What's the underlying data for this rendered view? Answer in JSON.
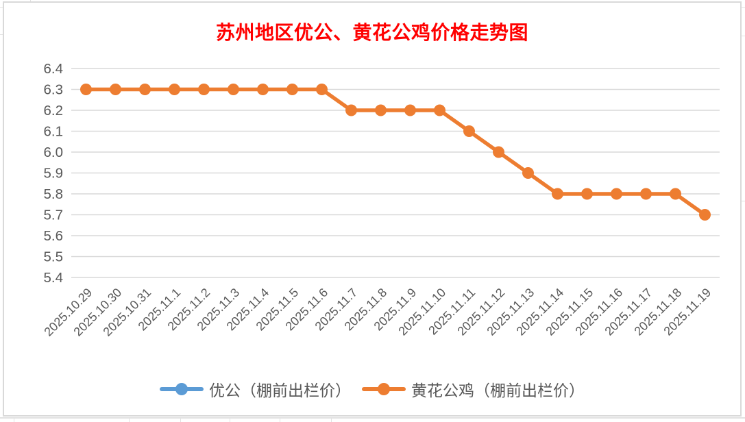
{
  "title": {
    "text": "苏州地区优公、黄花公鸡价格走势图",
    "color": "#FF0000"
  },
  "chart_data": {
    "type": "line",
    "title": "苏州地区优公、黄花公鸡价格走势图",
    "categories": [
      "2025.10.29",
      "2025.10.30",
      "2025.10.31",
      "2025.11.1",
      "2025.11.2",
      "2025.11.3",
      "2025.11.4",
      "2025.11.5",
      "2025.11.6",
      "2025.11.7",
      "2025.11.8",
      "2025.11.9",
      "2025.11.10",
      "2025.11.11",
      "2025.11.12",
      "2025.11.13",
      "2025.11.14",
      "2025.11.15",
      "2025.11.16",
      "2025.11.17",
      "2025.11.18",
      "2025.11.19"
    ],
    "series": [
      {
        "name": "优公（棚前出栏价）",
        "color": "#5B9BD5",
        "visible_in_plot": false
      },
      {
        "name": "黄花公鸡（棚前出栏价）",
        "color": "#ED7D31",
        "visible_in_plot": true,
        "values": [
          6.3,
          6.3,
          6.3,
          6.3,
          6.3,
          6.3,
          6.3,
          6.3,
          6.3,
          6.2,
          6.2,
          6.2,
          6.2,
          6.1,
          6.0,
          5.9,
          5.8,
          5.8,
          5.8,
          5.8,
          5.8,
          5.7
        ]
      }
    ],
    "ylim": [
      5.4,
      6.4
    ],
    "yticks": [
      "6.4",
      "6.3",
      "6.2",
      "6.1",
      "6.0",
      "5.9",
      "5.8",
      "5.7",
      "5.6",
      "5.5",
      "5.4"
    ],
    "grid": true,
    "legend_position": "bottom",
    "x_label_rotation_deg": -45,
    "axis_label_color": "#595959",
    "gridline_color": "#D9D9D9",
    "plot_background": "#FFFFFF"
  }
}
